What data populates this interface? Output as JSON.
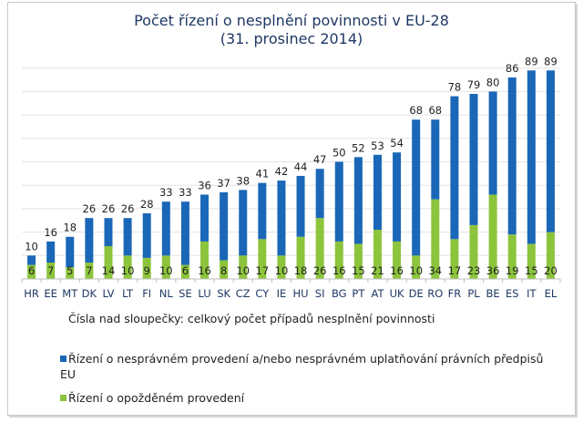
{
  "chart_data": {
    "type": "bar",
    "stacked": true,
    "title": "Počet řízení o nesplnění povinnosti v EU-28",
    "subtitle": "(31. prosinec 2014)",
    "xlabel": "",
    "ylabel": "",
    "ylim": [
      0,
      100
    ],
    "grid": true,
    "categories": [
      "HR",
      "EE",
      "MT",
      "DK",
      "LV",
      "LT",
      "FI",
      "NL",
      "SE",
      "LU",
      "SK",
      "CZ",
      "CY",
      "IE",
      "HU",
      "SI",
      "BG",
      "PT",
      "AT",
      "UK",
      "DE",
      "RO",
      "FR",
      "PL",
      "BE",
      "ES",
      "IT",
      "EL"
    ],
    "totals": [
      10,
      16,
      18,
      26,
      26,
      26,
      28,
      33,
      33,
      36,
      37,
      38,
      41,
      42,
      44,
      47,
      50,
      52,
      53,
      54,
      68,
      68,
      78,
      79,
      80,
      86,
      89,
      89
    ],
    "series": [
      {
        "name": "Řízení o opožděném provedení",
        "color": "#8cc43c",
        "values": [
          6,
          7,
          5,
          7,
          14,
          10,
          9,
          10,
          6,
          16,
          8,
          10,
          17,
          10,
          18,
          26,
          16,
          15,
          21,
          16,
          10,
          34,
          17,
          23,
          36,
          19,
          15,
          20
        ]
      },
      {
        "name": "Řízení o nesprávném provedení a/nebo nesprávném uplatňování právních předpisů EU",
        "color": "#1a67b8",
        "values": [
          4,
          9,
          13,
          19,
          12,
          16,
          19,
          23,
          27,
          20,
          29,
          28,
          24,
          32,
          26,
          21,
          34,
          37,
          32,
          38,
          58,
          34,
          61,
          56,
          44,
          67,
          74,
          69
        ]
      }
    ],
    "note": "Čísla nad sloupečky: celkový počet případů nesplnění povinnosti",
    "legend_position": "bottom"
  }
}
